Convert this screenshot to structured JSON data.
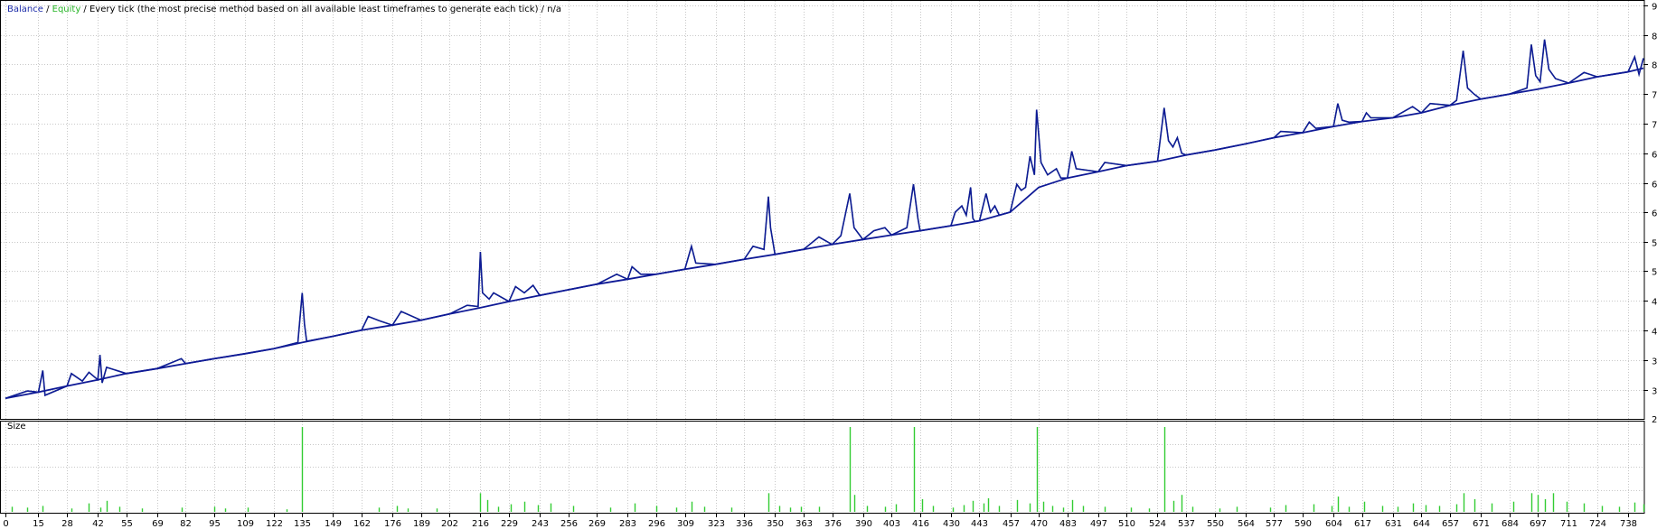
{
  "legend": {
    "balance": "Balance",
    "sep1": " / ",
    "equity": "Equity",
    "sep2": " / ",
    "description": "Every tick (the most precise method based on all available least timeframes to generate each tick) / n/a"
  },
  "colors": {
    "balance": "#0f1a96",
    "equity": "#22c022",
    "size_bars": "#33cc33",
    "grid": "#c8c8c8",
    "frame": "#000000",
    "background": "#ffffff"
  },
  "chart_data": [
    {
      "type": "line",
      "title": "",
      "series": [
        {
          "name": "Balance",
          "points": [
            [
              0,
              300
            ],
            [
              15,
              310
            ],
            [
              28,
              320
            ],
            [
              42,
              330
            ],
            [
              55,
              340
            ],
            [
              69,
              348
            ],
            [
              82,
              356
            ],
            [
              95,
              364
            ],
            [
              109,
              372
            ],
            [
              122,
              380
            ],
            [
              135,
              390
            ],
            [
              149,
              400
            ],
            [
              162,
              410
            ],
            [
              176,
              418
            ],
            [
              189,
              426
            ],
            [
              202,
              436
            ],
            [
              216,
              446
            ],
            [
              229,
              456
            ],
            [
              243,
              466
            ],
            [
              256,
              475
            ],
            [
              269,
              484
            ],
            [
              283,
              492
            ],
            [
              296,
              500
            ],
            [
              309,
              508
            ],
            [
              323,
              516
            ],
            [
              336,
              524
            ],
            [
              350,
              532
            ],
            [
              363,
              540
            ],
            [
              376,
              548
            ],
            [
              390,
              556
            ],
            [
              403,
              563
            ],
            [
              416,
              570
            ],
            [
              430,
              578
            ],
            [
              443,
              586
            ],
            [
              457,
              600
            ],
            [
              470,
              640
            ],
            [
              483,
              655
            ],
            [
              497,
              665
            ],
            [
              510,
              675
            ],
            [
              524,
              682
            ],
            [
              537,
              692
            ],
            [
              550,
              700
            ],
            [
              564,
              710
            ],
            [
              577,
              720
            ],
            [
              590,
              728
            ],
            [
              604,
              738
            ],
            [
              617,
              746
            ],
            [
              631,
              752
            ],
            [
              644,
              760
            ],
            [
              657,
              772
            ],
            [
              671,
              782
            ],
            [
              684,
              790
            ],
            [
              697,
              798
            ],
            [
              711,
              808
            ],
            [
              724,
              818
            ],
            [
              738,
              826
            ],
            [
              745,
              832
            ]
          ]
        },
        {
          "name": "Equity",
          "points": [
            [
              0,
              300
            ],
            [
              10,
              312
            ],
            [
              15,
              310
            ],
            [
              17,
              345
            ],
            [
              18,
              305
            ],
            [
              28,
              320
            ],
            [
              30,
              340
            ],
            [
              35,
              328
            ],
            [
              38,
              342
            ],
            [
              42,
              330
            ],
            [
              43,
              370
            ],
            [
              44,
              325
            ],
            [
              46,
              350
            ],
            [
              55,
              340
            ],
            [
              69,
              348
            ],
            [
              80,
              364
            ],
            [
              82,
              356
            ],
            [
              95,
              364
            ],
            [
              109,
              372
            ],
            [
              122,
              380
            ],
            [
              133,
              390
            ],
            [
              135,
              470
            ],
            [
              136,
              420
            ],
            [
              137,
              392
            ],
            [
              149,
              400
            ],
            [
              162,
              410
            ],
            [
              165,
              432
            ],
            [
              170,
              425
            ],
            [
              176,
              418
            ],
            [
              180,
              440
            ],
            [
              189,
              426
            ],
            [
              202,
              436
            ],
            [
              210,
              450
            ],
            [
              215,
              448
            ],
            [
              216,
              536
            ],
            [
              217,
              470
            ],
            [
              220,
              460
            ],
            [
              222,
              470
            ],
            [
              229,
              456
            ],
            [
              232,
              480
            ],
            [
              236,
              470
            ],
            [
              240,
              482
            ],
            [
              243,
              466
            ],
            [
              256,
              475
            ],
            [
              269,
              484
            ],
            [
              278,
              500
            ],
            [
              283,
              492
            ],
            [
              285,
              512
            ],
            [
              289,
              500
            ],
            [
              296,
              500
            ],
            [
              309,
              508
            ],
            [
              312,
              545
            ],
            [
              314,
              518
            ],
            [
              323,
              516
            ],
            [
              336,
              524
            ],
            [
              340,
              545
            ],
            [
              345,
              540
            ],
            [
              347,
              625
            ],
            [
              348,
              575
            ],
            [
              350,
              532
            ],
            [
              363,
              540
            ],
            [
              370,
              560
            ],
            [
              376,
              548
            ],
            [
              380,
              562
            ],
            [
              384,
              630
            ],
            [
              386,
              575
            ],
            [
              390,
              556
            ],
            [
              395,
              570
            ],
            [
              400,
              575
            ],
            [
              403,
              563
            ],
            [
              410,
              575
            ],
            [
              413,
              645
            ],
            [
              415,
              590
            ],
            [
              416,
              570
            ],
            [
              430,
              578
            ],
            [
              432,
              600
            ],
            [
              435,
              610
            ],
            [
              437,
              595
            ],
            [
              439,
              640
            ],
            [
              440,
              590
            ],
            [
              441,
              585
            ],
            [
              443,
              586
            ],
            [
              446,
              630
            ],
            [
              448,
              600
            ],
            [
              450,
              610
            ],
            [
              452,
              595
            ],
            [
              457,
              600
            ],
            [
              460,
              645
            ],
            [
              462,
              635
            ],
            [
              464,
              640
            ],
            [
              466,
              690
            ],
            [
              468,
              660
            ],
            [
              469,
              765
            ],
            [
              471,
              680
            ],
            [
              474,
              660
            ],
            [
              478,
              670
            ],
            [
              480,
              655
            ],
            [
              483,
              655
            ],
            [
              485,
              698
            ],
            [
              487,
              670
            ],
            [
              497,
              665
            ],
            [
              500,
              680
            ],
            [
              510,
              675
            ],
            [
              524,
              682
            ],
            [
              527,
              768
            ],
            [
              529,
              715
            ],
            [
              531,
              705
            ],
            [
              533,
              720
            ],
            [
              535,
              695
            ],
            [
              537,
              692
            ],
            [
              550,
              700
            ],
            [
              564,
              710
            ],
            [
              577,
              720
            ],
            [
              580,
              730
            ],
            [
              590,
              728
            ],
            [
              593,
              745
            ],
            [
              596,
              735
            ],
            [
              604,
              738
            ],
            [
              606,
              775
            ],
            [
              608,
              748
            ],
            [
              611,
              745
            ],
            [
              617,
              746
            ],
            [
              619,
              760
            ],
            [
              621,
              752
            ],
            [
              631,
              752
            ],
            [
              640,
              770
            ],
            [
              644,
              760
            ],
            [
              648,
              775
            ],
            [
              657,
              772
            ],
            [
              660,
              780
            ],
            [
              663,
              860
            ],
            [
              665,
              800
            ],
            [
              668,
              790
            ],
            [
              671,
              782
            ],
            [
              684,
              790
            ],
            [
              692,
              800
            ],
            [
              694,
              870
            ],
            [
              696,
              820
            ],
            [
              698,
              810
            ],
            [
              700,
              878
            ],
            [
              702,
              830
            ],
            [
              705,
              815
            ],
            [
              711,
              808
            ],
            [
              718,
              825
            ],
            [
              724,
              818
            ],
            [
              738,
              826
            ],
            [
              741,
              850
            ],
            [
              743,
              822
            ],
            [
              745,
              848
            ]
          ]
        }
      ],
      "xlim": [
        0,
        745
      ],
      "ylim": [
        267,
        933
      ],
      "yticks": [
        "314",
        "362",
        "410",
        "457",
        "505",
        "552",
        "600",
        "647",
        "695",
        "743",
        "790",
        "838",
        "885",
        "933"
      ],
      "bottom_ytick": "267",
      "grid": true
    },
    {
      "type": "bar",
      "title": "Size",
      "x": [
        3,
        10,
        17,
        30,
        38,
        43,
        46,
        52,
        62,
        80,
        95,
        100,
        110,
        128,
        135,
        170,
        178,
        183,
        196,
        216,
        219,
        224,
        230,
        236,
        242,
        248,
        258,
        275,
        286,
        296,
        305,
        312,
        318,
        330,
        347,
        352,
        357,
        362,
        370,
        384,
        386,
        392,
        400,
        405,
        413,
        417,
        422,
        431,
        436,
        440,
        445,
        447,
        452,
        460,
        466,
        469,
        472,
        476,
        481,
        485,
        490,
        500,
        512,
        520,
        527,
        531,
        535,
        540,
        552,
        560,
        575,
        582,
        595,
        603,
        606,
        611,
        618,
        626,
        633,
        640,
        646,
        652,
        660,
        663,
        668,
        676,
        686,
        694,
        697,
        700,
        704,
        710,
        718,
        726,
        734,
        741,
        745
      ],
      "values": [
        0.06,
        0.05,
        0.07,
        0.04,
        0.1,
        0.05,
        0.13,
        0.06,
        0.04,
        0.05,
        0.06,
        0.04,
        0.05,
        0.03,
        1.0,
        0.05,
        0.07,
        0.04,
        0.04,
        0.22,
        0.14,
        0.06,
        0.09,
        0.12,
        0.08,
        0.1,
        0.07,
        0.05,
        0.1,
        0.07,
        0.05,
        0.12,
        0.06,
        0.05,
        0.22,
        0.07,
        0.05,
        0.06,
        0.06,
        1.0,
        0.2,
        0.07,
        0.06,
        0.09,
        1.0,
        0.15,
        0.07,
        0.05,
        0.08,
        0.13,
        0.1,
        0.16,
        0.07,
        0.14,
        0.1,
        1.0,
        0.12,
        0.07,
        0.05,
        0.14,
        0.07,
        0.06,
        0.05,
        0.04,
        1.0,
        0.13,
        0.2,
        0.06,
        0.04,
        0.06,
        0.05,
        0.08,
        0.09,
        0.07,
        0.18,
        0.06,
        0.12,
        0.07,
        0.06,
        0.1,
        0.08,
        0.07,
        0.09,
        0.22,
        0.15,
        0.1,
        0.12,
        0.22,
        0.2,
        0.15,
        0.22,
        0.12,
        0.1,
        0.07,
        0.06,
        0.11,
        0.09
      ]
    }
  ],
  "xticks": [
    "0",
    "15",
    "28",
    "42",
    "55",
    "69",
    "82",
    "95",
    "109",
    "122",
    "135",
    "149",
    "162",
    "176",
    "189",
    "202",
    "216",
    "229",
    "243",
    "256",
    "269",
    "283",
    "296",
    "309",
    "323",
    "336",
    "350",
    "363",
    "376",
    "390",
    "403",
    "416",
    "430",
    "443",
    "457",
    "470",
    "483",
    "497",
    "510",
    "524",
    "537",
    "550",
    "564",
    "577",
    "590",
    "604",
    "617",
    "631",
    "644",
    "657",
    "671",
    "684",
    "697",
    "711",
    "724",
    "738"
  ]
}
